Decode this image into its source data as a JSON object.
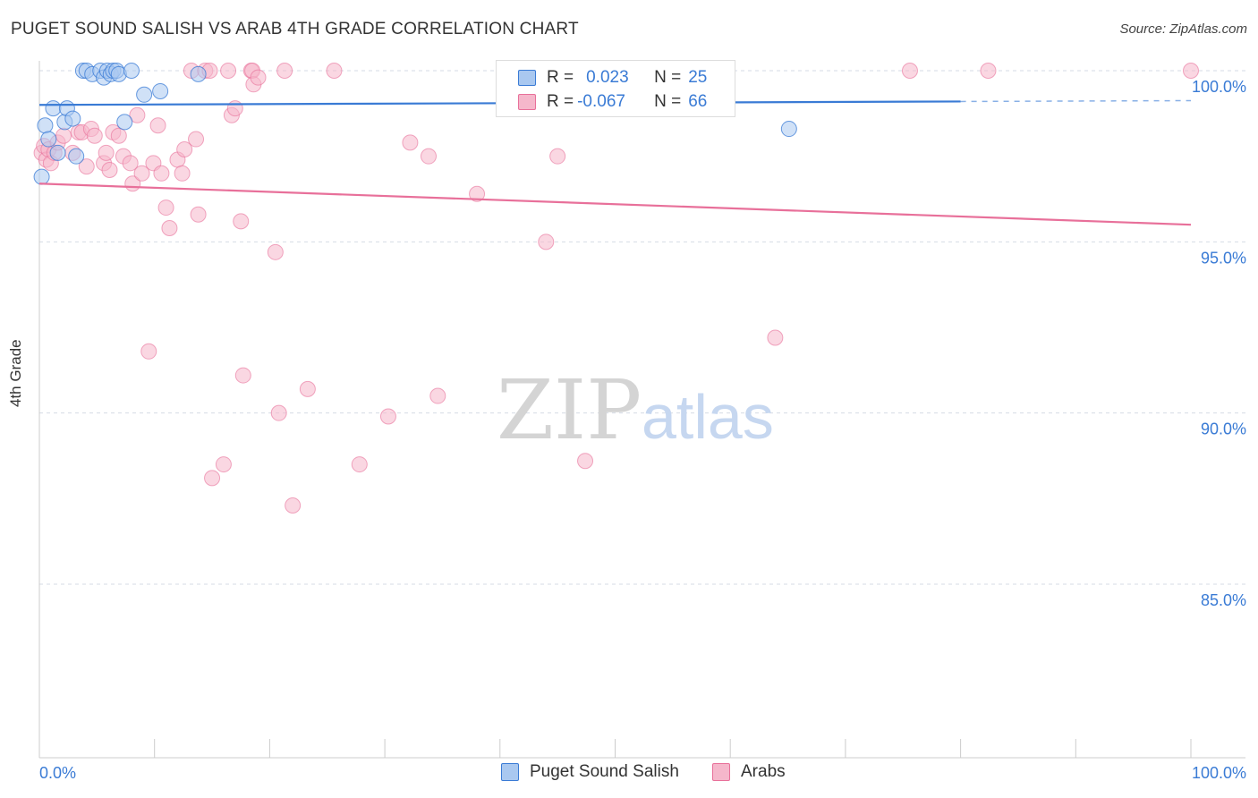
{
  "header": {
    "title": "PUGET SOUND SALISH VS ARAB 4TH GRADE CORRELATION CHART",
    "source": "Source: ZipAtlas.com"
  },
  "watermark": {
    "zip": "ZIP",
    "atlas": "atlas"
  },
  "colors": {
    "blue": "#3a7bd5",
    "blue_fill": "#a9c8f0",
    "pink": "#e8709a",
    "pink_fill": "#f5b7cb",
    "grid": "#d5dbe5",
    "tick_text": "#3a7bd5"
  },
  "legend": {
    "rows": [
      {
        "r_label": "R =",
        "r_value": "0.023",
        "n_label": "N =",
        "n_value": "25"
      },
      {
        "r_label": "R =",
        "r_value": "-0.067",
        "n_label": "N =",
        "n_value": "66"
      }
    ]
  },
  "chart_data": {
    "type": "scatter",
    "title": "PUGET SOUND SALISH VS ARAB 4TH GRADE CORRELATION CHART",
    "xlabel": "",
    "ylabel": "4th Grade",
    "xlim": [
      0,
      100
    ],
    "ylim": [
      80.5,
      100.7
    ],
    "x_tick_labels": [
      "0.0%",
      "100.0%"
    ],
    "y_ticks": [
      85,
      90,
      95,
      100
    ],
    "y_tick_labels": [
      "85.0%",
      "90.0%",
      "95.0%",
      "100.0%"
    ],
    "grid": "horizontal dashed",
    "legend_position": "top-center and bottom",
    "series": [
      {
        "name": "Puget Sound Salish",
        "color": "#3a7bd5",
        "trend": {
          "x": [
            0,
            80
          ],
          "y": [
            99.0,
            99.1
          ],
          "dashed_extension_to": 100
        },
        "points": [
          [
            0.2,
            96.9
          ],
          [
            0.5,
            98.4
          ],
          [
            0.8,
            98.0
          ],
          [
            1.2,
            98.9
          ],
          [
            1.6,
            97.6
          ],
          [
            2.2,
            98.5
          ],
          [
            2.4,
            98.9
          ],
          [
            2.9,
            98.6
          ],
          [
            3.2,
            97.5
          ],
          [
            3.8,
            100.0
          ],
          [
            4.1,
            100.0
          ],
          [
            4.6,
            99.9
          ],
          [
            5.3,
            100.0
          ],
          [
            5.6,
            99.8
          ],
          [
            5.9,
            100.0
          ],
          [
            6.2,
            99.9
          ],
          [
            6.4,
            100.0
          ],
          [
            6.7,
            100.0
          ],
          [
            6.9,
            99.9
          ],
          [
            7.4,
            98.5
          ],
          [
            8.0,
            100.0
          ],
          [
            9.1,
            99.3
          ],
          [
            10.5,
            99.4
          ],
          [
            13.8,
            99.9
          ],
          [
            65.1,
            98.3
          ]
        ]
      },
      {
        "name": "Arabs",
        "color": "#e8709a",
        "trend": {
          "x": [
            0,
            100
          ],
          "y": [
            96.7,
            95.5
          ]
        },
        "points": [
          [
            0.2,
            97.6
          ],
          [
            0.4,
            97.8
          ],
          [
            0.6,
            97.4
          ],
          [
            0.8,
            97.7
          ],
          [
            1.0,
            97.3
          ],
          [
            1.3,
            97.6
          ],
          [
            1.6,
            97.9
          ],
          [
            2.1,
            98.1
          ],
          [
            2.9,
            97.6
          ],
          [
            3.4,
            98.2
          ],
          [
            3.7,
            98.2
          ],
          [
            4.1,
            97.2
          ],
          [
            4.5,
            98.3
          ],
          [
            4.8,
            98.1
          ],
          [
            5.6,
            97.3
          ],
          [
            5.8,
            97.6
          ],
          [
            6.1,
            97.1
          ],
          [
            6.4,
            98.2
          ],
          [
            6.9,
            98.1
          ],
          [
            7.3,
            97.5
          ],
          [
            7.9,
            97.3
          ],
          [
            8.1,
            96.7
          ],
          [
            8.5,
            98.7
          ],
          [
            8.9,
            97.0
          ],
          [
            9.5,
            91.8
          ],
          [
            9.9,
            97.3
          ],
          [
            10.3,
            98.4
          ],
          [
            10.6,
            97.0
          ],
          [
            11.0,
            96.0
          ],
          [
            11.3,
            95.4
          ],
          [
            12.0,
            97.4
          ],
          [
            12.4,
            97.0
          ],
          [
            12.6,
            97.7
          ],
          [
            13.2,
            100.0
          ],
          [
            13.6,
            98.0
          ],
          [
            13.8,
            95.8
          ],
          [
            14.4,
            100.0
          ],
          [
            14.8,
            100.0
          ],
          [
            15.0,
            88.1
          ],
          [
            16.0,
            88.5
          ],
          [
            16.4,
            100.0
          ],
          [
            16.7,
            98.7
          ],
          [
            17.0,
            98.9
          ],
          [
            17.5,
            95.6
          ],
          [
            17.7,
            91.1
          ],
          [
            18.4,
            100.0
          ],
          [
            18.5,
            100.0
          ],
          [
            18.6,
            99.6
          ],
          [
            19.0,
            99.8
          ],
          [
            20.5,
            94.7
          ],
          [
            20.8,
            90.0
          ],
          [
            21.3,
            100.0
          ],
          [
            22.0,
            87.3
          ],
          [
            23.3,
            90.7
          ],
          [
            25.6,
            100.0
          ],
          [
            27.8,
            88.5
          ],
          [
            30.3,
            89.9
          ],
          [
            32.2,
            97.9
          ],
          [
            33.8,
            97.5
          ],
          [
            34.6,
            90.5
          ],
          [
            38.0,
            96.4
          ],
          [
            44.0,
            95.0
          ],
          [
            45.0,
            97.5
          ],
          [
            47.4,
            88.6
          ],
          [
            63.9,
            92.2
          ],
          [
            75.6,
            100.0
          ]
        ]
      }
    ],
    "extra_points_top_right": {
      "series": "Arabs",
      "points": [
        [
          82.4,
          100.0
        ],
        [
          100.0,
          100.0
        ],
        [
          47.3,
          100.0
        ]
      ]
    }
  },
  "bottom_legend": {
    "items": [
      {
        "label": "Puget Sound Salish"
      },
      {
        "label": "Arabs"
      }
    ]
  }
}
